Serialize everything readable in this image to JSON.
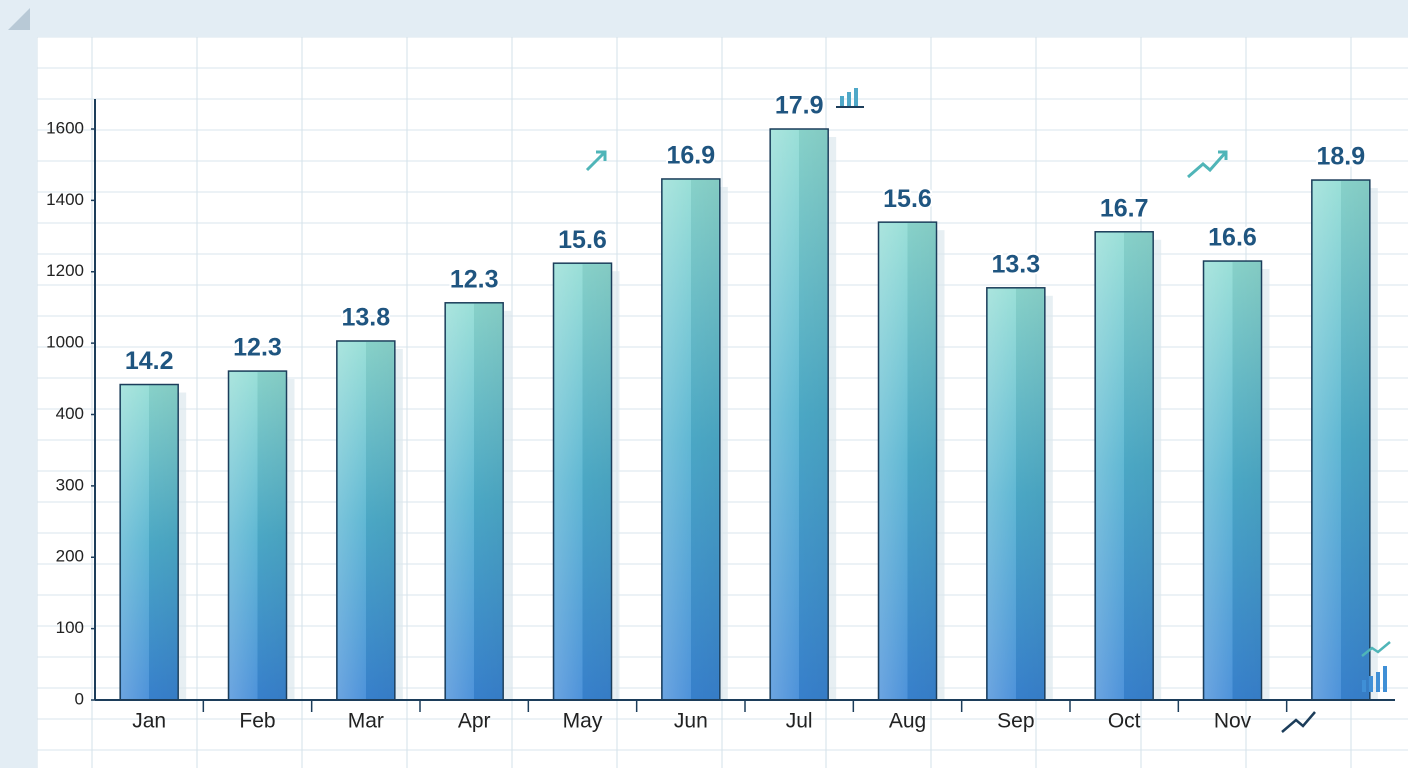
{
  "chart_data": {
    "type": "bar",
    "categories": [
      "Jan",
      "Feb",
      "Mar",
      "Apr",
      "May",
      "Jun",
      "Jul",
      "Aug",
      "Sep",
      "Oct",
      "Nov",
      null
    ],
    "values": [
      652,
      765,
      1006,
      1113,
      1224,
      1460,
      1600,
      1339,
      1155,
      1312,
      1230,
      1457
    ],
    "annotations": [
      "14.2",
      "12.3",
      "13.8",
      "12.3",
      "15.6",
      "16.9",
      "17.9",
      "15.6",
      "13.3",
      "16.7",
      "16.6",
      "18.9"
    ],
    "ylim": [
      0,
      1600
    ],
    "yticks": [
      0,
      100,
      200,
      300,
      400,
      1000,
      1200,
      1400,
      1600
    ],
    "color": "#3d8ad8"
  }
}
